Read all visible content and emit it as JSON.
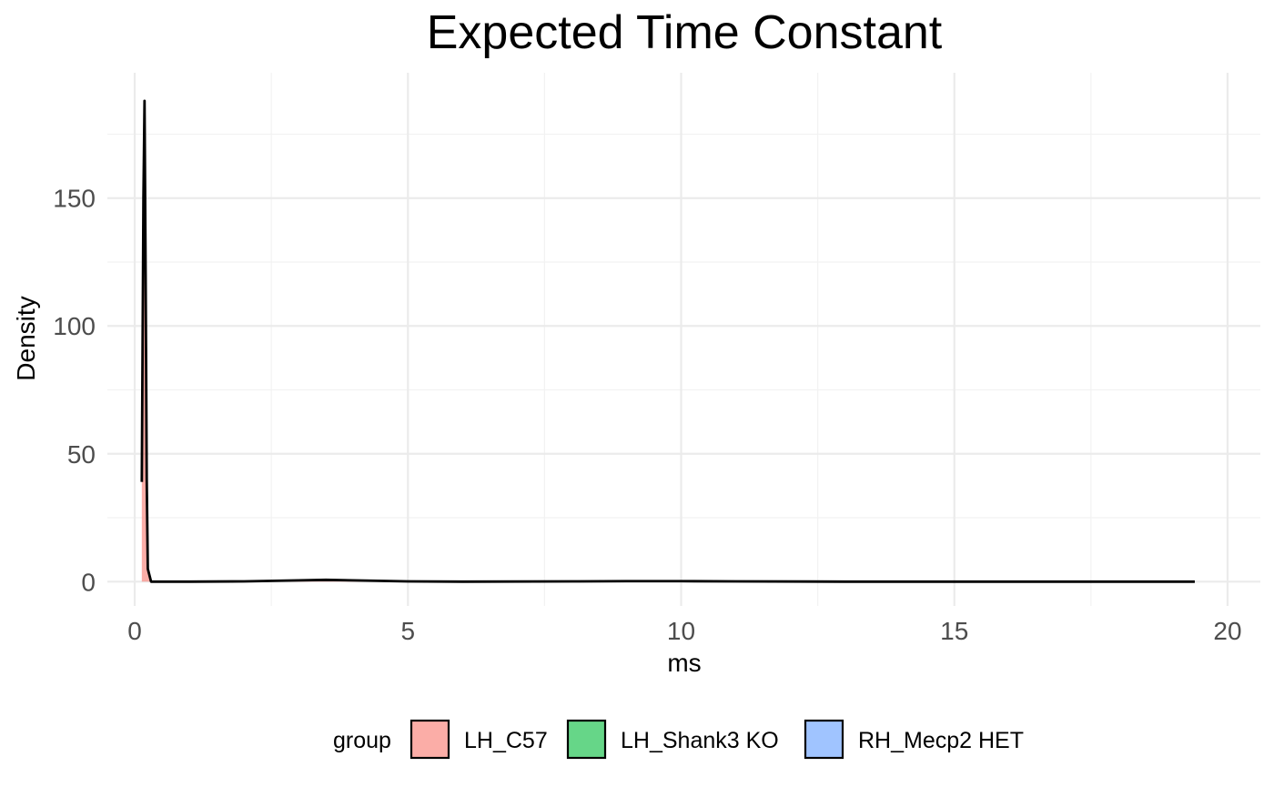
{
  "chart_data": {
    "type": "area",
    "title": "Expected Time Constant",
    "xlabel": "ms",
    "ylabel": "Density",
    "xlim": [
      -0.5,
      20.6
    ],
    "ylim": [
      -9.5,
      199
    ],
    "x_ticks": [
      0,
      5,
      10,
      15,
      20
    ],
    "x_tick_labels": [
      "0",
      "5",
      "10",
      "15",
      "20"
    ],
    "y_ticks": [
      0,
      50,
      100,
      150
    ],
    "y_tick_labels": [
      "0",
      "50",
      "100",
      "150"
    ],
    "x_minor": [
      2.5,
      7.5,
      12.5,
      17.5
    ],
    "y_minor": [
      25,
      75,
      125,
      175
    ],
    "grid": true,
    "legend_title": "group",
    "legend_position": "bottom",
    "series": [
      {
        "name": "LH_C57",
        "color": "#F8766D",
        "points": [
          [
            0.13,
            39
          ],
          [
            0.16,
            150
          ],
          [
            0.18,
            188
          ],
          [
            0.2,
            120
          ],
          [
            0.22,
            40
          ],
          [
            0.24,
            5
          ],
          [
            0.3,
            0
          ],
          [
            1.0,
            0
          ],
          [
            2.0,
            0.1
          ],
          [
            3.0,
            0.5
          ],
          [
            3.5,
            0.7
          ],
          [
            4.0,
            0.5
          ],
          [
            5.0,
            0.1
          ],
          [
            6.0,
            0
          ],
          [
            8.0,
            0.1
          ],
          [
            9.0,
            0.2
          ],
          [
            10.0,
            0.2
          ],
          [
            11.0,
            0.1
          ],
          [
            13.0,
            0
          ],
          [
            19.4,
            0
          ]
        ]
      },
      {
        "name": "LH_Shank3 KO",
        "color": "#00BA38",
        "points": []
      },
      {
        "name": "RH_Mecp2 HET",
        "color": "#619CFF",
        "points": []
      }
    ]
  }
}
